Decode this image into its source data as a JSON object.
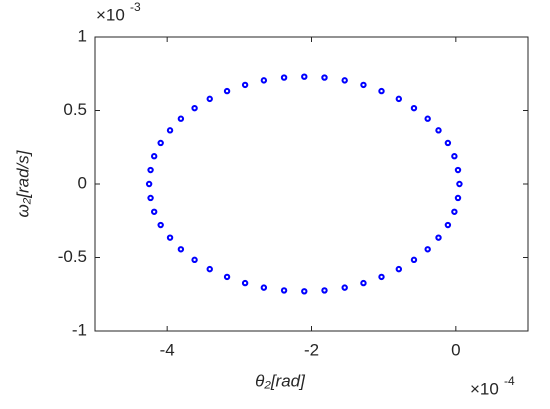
{
  "chart_data": {
    "type": "scatter",
    "x_label": "θ₂[rad]",
    "y_label": "ω₂[rad/s]",
    "multiplier": "×10",
    "x_exponent": "-4",
    "y_exponent": "-3",
    "color": "#0000ff",
    "xlim": [
      -5,
      1
    ],
    "ylim": [
      -1,
      1
    ],
    "xticks": [
      -4,
      -2,
      0
    ],
    "yticks": [
      -1,
      -0.5,
      0,
      0.5,
      1
    ],
    "x": [
      0.05,
      0.03,
      -0.02,
      -0.11,
      -0.24,
      -0.39,
      -0.58,
      -0.79,
      -1.03,
      -1.28,
      -1.54,
      -1.82,
      -2.1,
      -2.38,
      -2.66,
      -2.92,
      -3.17,
      -3.41,
      -3.62,
      -3.81,
      -3.96,
      -4.09,
      -4.18,
      -4.23,
      -4.25,
      -4.23,
      -4.18,
      -4.09,
      -3.96,
      -3.81,
      -3.62,
      -3.41,
      -3.17,
      -2.92,
      -2.66,
      -2.38,
      -2.1,
      -1.82,
      -1.54,
      -1.28,
      -1.03,
      -0.79,
      -0.58,
      -0.39,
      -0.24,
      -0.11,
      -0.02,
      0.03
    ],
    "y": [
      0,
      0.095,
      0.189,
      0.279,
      0.365,
      0.444,
      0.516,
      0.579,
      0.632,
      0.674,
      0.705,
      0.724,
      0.73,
      0.724,
      0.705,
      0.674,
      0.632,
      0.579,
      0.516,
      0.444,
      0.365,
      0.279,
      0.189,
      0.095,
      0,
      -0.095,
      -0.189,
      -0.279,
      -0.365,
      -0.444,
      -0.516,
      -0.579,
      -0.632,
      -0.674,
      -0.705,
      -0.724,
      -0.73,
      -0.724,
      -0.705,
      -0.674,
      -0.632,
      -0.579,
      -0.516,
      -0.444,
      -0.365,
      -0.279,
      -0.189,
      -0.095
    ]
  }
}
